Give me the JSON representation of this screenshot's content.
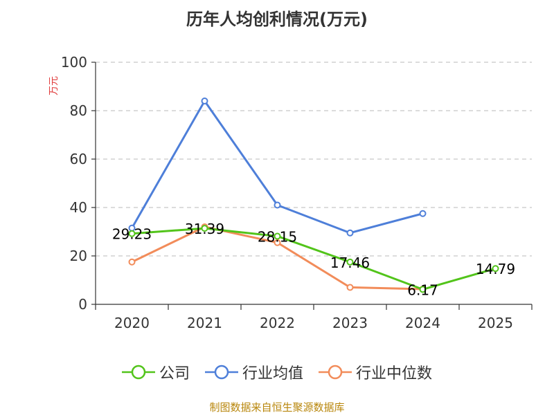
{
  "title": "历年人均创利情况(万元)",
  "source": "制图数据来自恒生聚源数据库",
  "colors": {
    "company": "#52c41a",
    "industry_avg": "#4e7fd9",
    "industry_median": "#f28c5a"
  },
  "chart_data": {
    "type": "line",
    "title": "历年人均创利情况(万元)",
    "ylabel": "万元",
    "xlabel": "",
    "categories": [
      "2020",
      "2021",
      "2022",
      "2023",
      "2024",
      "2025"
    ],
    "ylim": [
      0,
      100
    ],
    "yticks": [
      "0",
      "20",
      "40",
      "60",
      "80",
      "100"
    ],
    "grid": true,
    "legend_position": "bottom",
    "series": [
      {
        "name": "公司",
        "values": [
          29.23,
          31.39,
          28.15,
          17.46,
          6.17,
          14.79
        ],
        "labels": [
          "29.23",
          "31.39",
          "28.15",
          "17.46",
          "6.17",
          "14.79"
        ]
      },
      {
        "name": "行业均值",
        "values": [
          31.5,
          84,
          41,
          29.5,
          37.5,
          null
        ]
      },
      {
        "name": "行业中位数",
        "values": [
          17.5,
          32,
          25.5,
          7,
          6.3,
          null
        ]
      }
    ]
  }
}
